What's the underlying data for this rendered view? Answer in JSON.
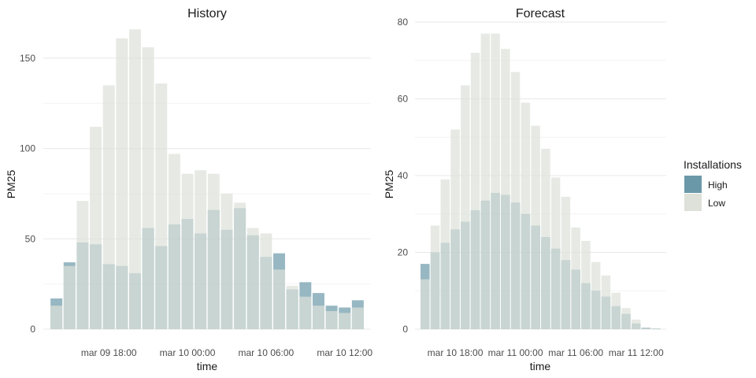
{
  "legend": {
    "title": "Installations",
    "items": [
      {
        "label": "High",
        "color": "#6b98a8"
      },
      {
        "label": "Low",
        "color": "#dde1d9"
      }
    ]
  },
  "chart_data": [
    {
      "type": "bar",
      "title": "History",
      "xlabel": "time",
      "ylabel": "PM25",
      "ylim": [
        0,
        170
      ],
      "yticks": [
        0,
        50,
        100,
        150
      ],
      "xtick_labels": [
        "mar 09 18:00",
        "mar 10 00:00",
        "mar 10 06:00",
        "mar 10 12:00"
      ],
      "x_range": [
        "2023-03-09 13:00",
        "2023-03-10 14:00"
      ],
      "grid": true,
      "overlay": true,
      "x": [
        "2023-03-09 14:00",
        "2023-03-09 15:00",
        "2023-03-09 16:00",
        "2023-03-09 17:00",
        "2023-03-09 18:00",
        "2023-03-09 19:00",
        "2023-03-09 20:00",
        "2023-03-09 21:00",
        "2023-03-09 22:00",
        "2023-03-09 23:00",
        "2023-03-10 00:00",
        "2023-03-10 01:00",
        "2023-03-10 02:00",
        "2023-03-10 03:00",
        "2023-03-10 04:00",
        "2023-03-10 05:00",
        "2023-03-10 06:00",
        "2023-03-10 07:00",
        "2023-03-10 08:00",
        "2023-03-10 09:00",
        "2023-03-10 10:00",
        "2023-03-10 11:00",
        "2023-03-10 12:00",
        "2023-03-10 13:00"
      ],
      "series": [
        {
          "name": "High",
          "values": [
            17,
            37,
            48,
            47,
            36,
            35,
            31,
            56,
            46,
            58,
            61,
            53,
            66,
            55,
            67,
            52,
            40,
            42,
            22,
            26,
            20,
            13,
            12,
            16
          ]
        },
        {
          "name": "Low",
          "values": [
            13,
            35,
            71,
            112,
            135,
            161,
            166,
            156,
            136,
            97,
            86,
            88,
            86,
            75,
            70,
            56,
            53,
            33,
            24,
            18,
            13,
            10,
            9,
            12
          ]
        }
      ]
    },
    {
      "type": "bar",
      "title": "Forecast",
      "xlabel": "time",
      "ylabel": "PM25",
      "ylim": [
        0,
        80
      ],
      "yticks": [
        0,
        20,
        40,
        60,
        80
      ],
      "xtick_labels": [
        "mar 10 18:00",
        "mar 11 00:00",
        "mar 11 06:00",
        "mar 11 12:00"
      ],
      "x_range": [
        "2023-03-10 14:00",
        "2023-03-11 15:00"
      ],
      "grid": true,
      "overlay": true,
      "x": [
        "2023-03-10 15:00",
        "2023-03-10 16:00",
        "2023-03-10 17:00",
        "2023-03-10 18:00",
        "2023-03-10 19:00",
        "2023-03-10 20:00",
        "2023-03-10 21:00",
        "2023-03-10 22:00",
        "2023-03-10 23:00",
        "2023-03-11 00:00",
        "2023-03-11 01:00",
        "2023-03-11 02:00",
        "2023-03-11 03:00",
        "2023-03-11 04:00",
        "2023-03-11 05:00",
        "2023-03-11 06:00",
        "2023-03-11 07:00",
        "2023-03-11 08:00",
        "2023-03-11 09:00",
        "2023-03-11 10:00",
        "2023-03-11 11:00",
        "2023-03-11 12:00",
        "2023-03-11 13:00",
        "2023-03-11 14:00"
      ],
      "series": [
        {
          "name": "High",
          "values": [
            17,
            20,
            22.5,
            26,
            28,
            31,
            33.5,
            35.5,
            35,
            33,
            30,
            27,
            24,
            21,
            18,
            15.5,
            12,
            10,
            8.5,
            6,
            4,
            1.5,
            0.4,
            0.2
          ]
        },
        {
          "name": "Low",
          "values": [
            13,
            27,
            39,
            52,
            63.5,
            72,
            77,
            77,
            73,
            67,
            59,
            53,
            47,
            39.5,
            34.5,
            26.5,
            23,
            17.5,
            14,
            9.5,
            5.5,
            2.5,
            0.3,
            0.2
          ]
        }
      ]
    }
  ]
}
